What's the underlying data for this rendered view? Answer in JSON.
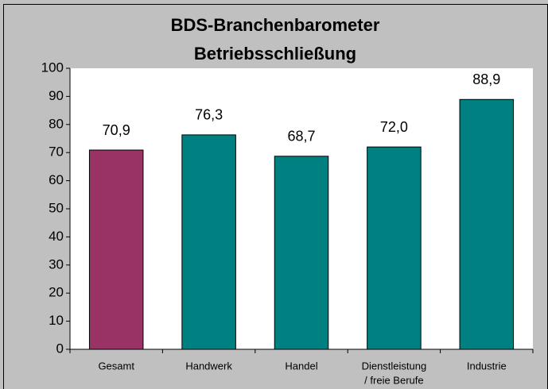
{
  "chart_data": {
    "type": "bar",
    "title": "BDS-Branchenbarometer",
    "subtitle": "Betriebsschließung",
    "categories": [
      "Gesamt",
      "Handwerk",
      "Handel",
      [
        "Dienstleistung",
        "/ freie Berufe"
      ],
      "Industrie"
    ],
    "values": [
      70.9,
      76.3,
      68.7,
      72.0,
      88.9
    ],
    "value_labels": [
      "70,9",
      "76,3",
      "68,7",
      "72,0",
      "88,9"
    ],
    "colors": [
      "#993366",
      "#008080",
      "#008080",
      "#008080",
      "#008080"
    ],
    "ylim": [
      0,
      100
    ],
    "yticks": [
      0,
      10,
      20,
      30,
      40,
      50,
      60,
      70,
      80,
      90,
      100
    ],
    "grid": false
  }
}
